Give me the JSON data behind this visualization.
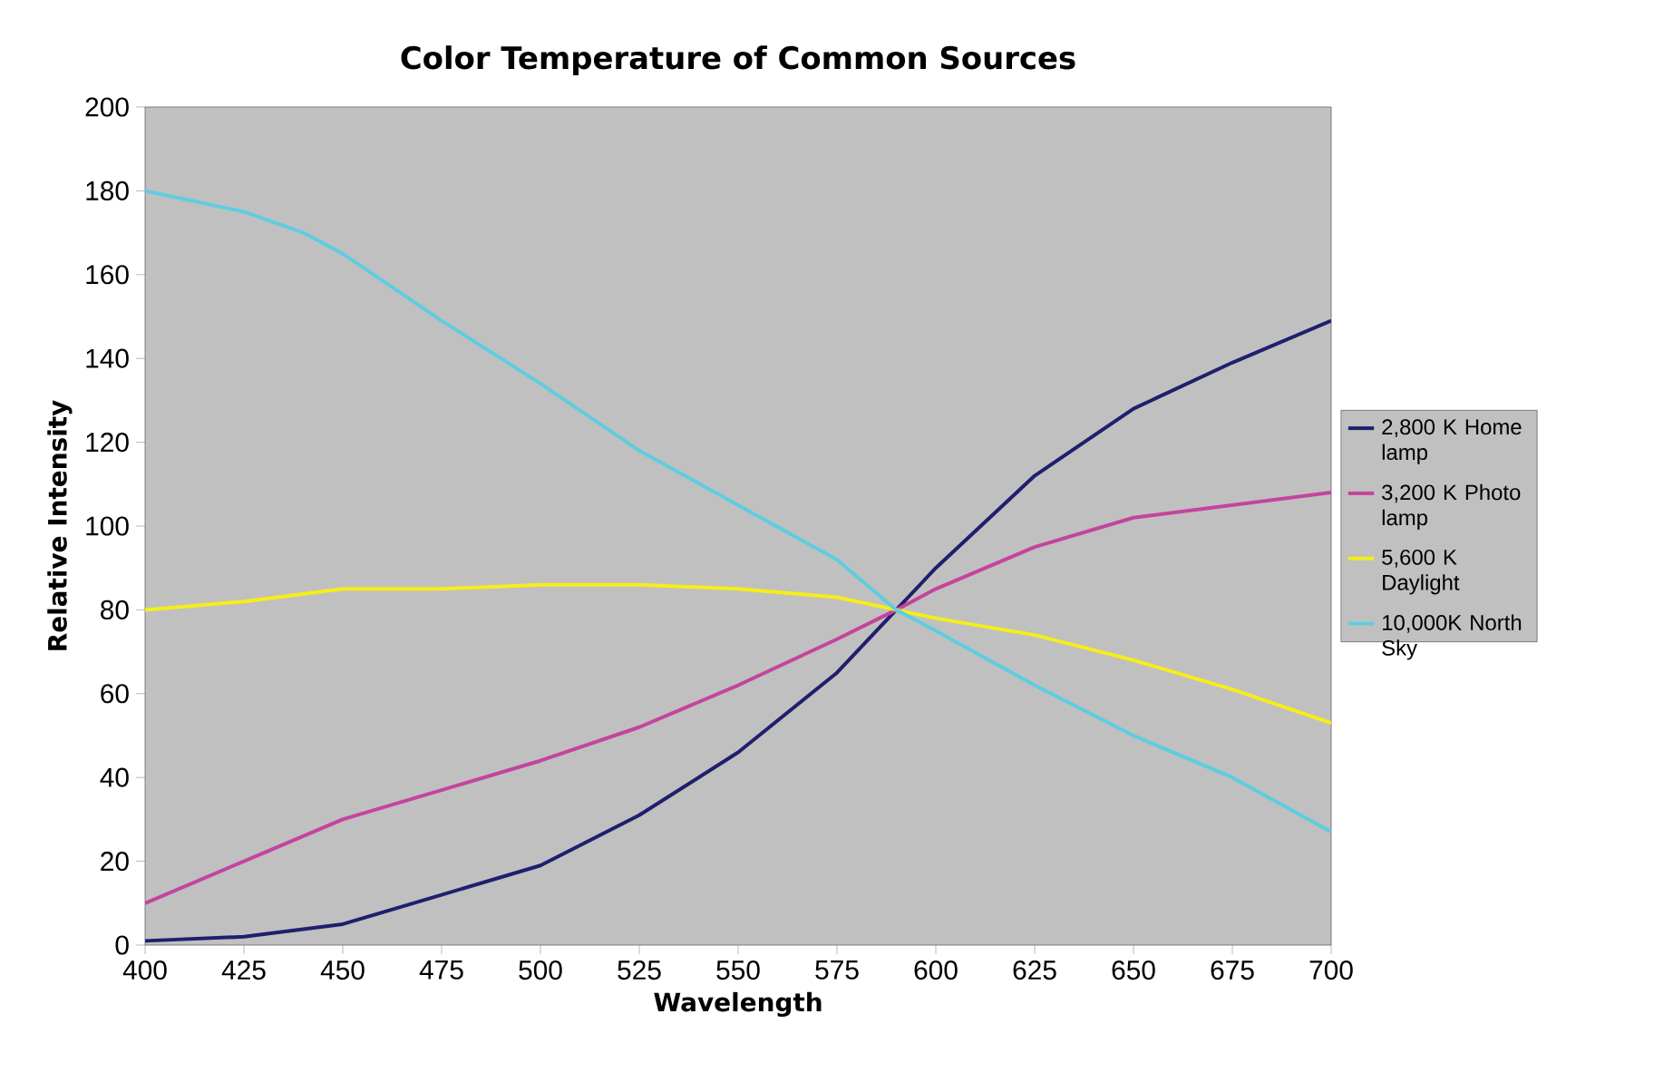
{
  "chart_data": {
    "type": "line",
    "title": "Color Temperature of Common Sources",
    "xlabel": "Wavelength",
    "ylabel": "Relative Intensity",
    "xlim": [
      400,
      700
    ],
    "xticks": [
      400,
      425,
      450,
      475,
      500,
      525,
      550,
      575,
      600,
      625,
      650,
      675,
      700
    ],
    "ylim": [
      0,
      200
    ],
    "yticks": [
      0,
      20,
      40,
      60,
      80,
      100,
      120,
      140,
      160,
      180,
      200
    ],
    "grid": false,
    "legend": "right",
    "line_style": "solid",
    "marker": "none",
    "series": [
      {
        "name": "2,800 K Home lamp",
        "color": "#1f1f6e",
        "x": [
          400,
          425,
          450,
          475,
          500,
          525,
          550,
          575,
          590,
          600,
          625,
          650,
          675,
          700
        ],
        "values": [
          1,
          2,
          5,
          12,
          19,
          31,
          46,
          65,
          80,
          90,
          112,
          128,
          139,
          149
        ]
      },
      {
        "name": "3,200 K Photo lamp",
        "color": "#c4449e",
        "x": [
          400,
          425,
          450,
          475,
          500,
          525,
          550,
          575,
          590,
          600,
          625,
          650,
          675,
          700
        ],
        "values": [
          10,
          20,
          30,
          37,
          44,
          52,
          62,
          73,
          80,
          85,
          95,
          102,
          105,
          108
        ]
      },
      {
        "name": "5,600 K Daylight",
        "color": "#f5ee1a",
        "x": [
          400,
          425,
          450,
          475,
          500,
          525,
          550,
          575,
          590,
          600,
          625,
          650,
          675,
          700
        ],
        "values": [
          80,
          82,
          85,
          85,
          86,
          86,
          85,
          83,
          80,
          78,
          74,
          68,
          61,
          53
        ]
      },
      {
        "name": "10,000K North Sky",
        "color": "#5ecde0",
        "x": [
          400,
          425,
          440,
          450,
          475,
          500,
          525,
          550,
          575,
          590,
          600,
          625,
          650,
          675,
          700
        ],
        "values": [
          180,
          175,
          170,
          165,
          149,
          134,
          118,
          105,
          92,
          80,
          75,
          62,
          50,
          40,
          27
        ]
      }
    ]
  }
}
